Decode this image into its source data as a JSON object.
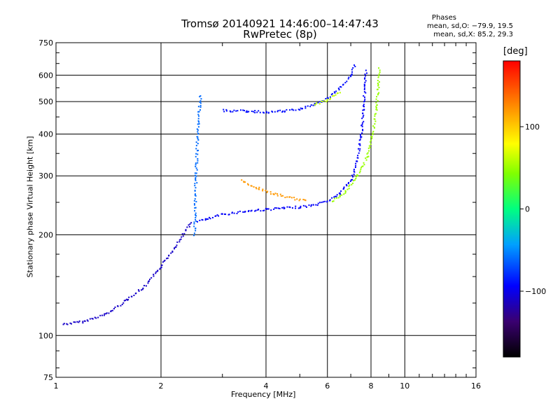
{
  "header": {
    "title_line1": "Tromsø 20140921 14:46:00–14:47:43",
    "title_line2": "RwPretec (8p)"
  },
  "stats": {
    "heading": "Phases",
    "o_line": "mean, sd,O: −79.9, 19.5",
    "x_line": "mean, sd,X:  85.2, 29.3"
  },
  "colorbar": {
    "unit": "[deg]",
    "ticks": [
      "100",
      "0",
      "−100"
    ],
    "range": [
      -180,
      180
    ]
  },
  "chart_data": {
    "type": "scatter",
    "title": "Tromsø 20140921 14:46:00–14:47:43",
    "subtitle": "RwPretec (8p)",
    "xlabel": "Frequency [MHz]",
    "ylabel": "Stationary phase Virtual Height [km]",
    "x_scale": "log",
    "y_scale": "log",
    "xlim": [
      1,
      16
    ],
    "ylim": [
      75,
      750
    ],
    "x_ticks": [
      1,
      2,
      4,
      6,
      8,
      10,
      16
    ],
    "x_tick_labels": [
      "1",
      "2",
      "4",
      "6",
      "8",
      "10",
      "16"
    ],
    "y_ticks": [
      75,
      100,
      200,
      300,
      400,
      500,
      600,
      750
    ],
    "y_tick_labels": [
      "75",
      "100",
      "200",
      "300",
      "400",
      "500",
      "600",
      "750"
    ],
    "grid": true,
    "color_scale": {
      "label": "[deg]",
      "min": -180,
      "max": 180
    },
    "series": [
      {
        "traces": [
          {
            "points": [
              [
                1.05,
                108
              ],
              [
                1.2,
                110
              ],
              [
                1.4,
                116
              ],
              [
                1.6,
                128
              ],
              [
                1.8,
                140
              ],
              [
                2.0,
                160
              ],
              [
                2.2,
                185
              ],
              [
                2.35,
                205
              ],
              [
                2.45,
                218
              ]
            ],
            "phase": -110
          },
          {
            "points": [
              [
                2.55,
                220
              ],
              [
                2.7,
                222
              ],
              [
                3.0,
                230
              ],
              [
                3.5,
                235
              ],
              [
                4.0,
                238
              ],
              [
                4.5,
                240
              ],
              [
                5.0,
                242
              ],
              [
                5.5,
                245
              ],
              [
                6.0,
                252
              ],
              [
                6.5,
                265
              ],
              [
                7.0,
                290
              ],
              [
                7.3,
                330
              ],
              [
                7.5,
                390
              ],
              [
                7.6,
                470
              ],
              [
                7.7,
                560
              ],
              [
                7.75,
                620
              ]
            ],
            "phase": -95
          },
          {
            "points": [
              [
                3.4,
                290
              ],
              [
                3.8,
                275
              ],
              [
                4.2,
                265
              ],
              [
                4.7,
                258
              ],
              [
                5.2,
                252
              ]
            ],
            "phase": 120
          },
          {
            "points": [
              [
                6.2,
                252
              ],
              [
                6.8,
                270
              ],
              [
                7.3,
                300
              ],
              [
                7.8,
                340
              ],
              [
                8.1,
                400
              ],
              [
                8.3,
                480
              ],
              [
                8.4,
                560
              ],
              [
                8.45,
                630
              ]
            ],
            "phase": 50
          },
          {
            "points": [
              [
                3.0,
                470
              ],
              [
                3.5,
                468
              ],
              [
                4.0,
                465
              ],
              [
                4.5,
                468
              ],
              [
                5.0,
                475
              ],
              [
                5.5,
                490
              ],
              [
                6.0,
                510
              ],
              [
                6.5,
                545
              ],
              [
                7.0,
                600
              ],
              [
                7.2,
                640
              ]
            ],
            "phase": -90
          },
          {
            "points": [
              [
                5.5,
                490
              ],
              [
                6.0,
                505
              ],
              [
                6.5,
                535
              ]
            ],
            "phase": 60
          },
          {
            "points": [
              [
                2.5,
                200
              ],
              [
                2.52,
                300
              ],
              [
                2.55,
                400
              ],
              [
                2.58,
                480
              ],
              [
                2.6,
                520
              ]
            ],
            "phase": -60
          }
        ]
      }
    ]
  }
}
